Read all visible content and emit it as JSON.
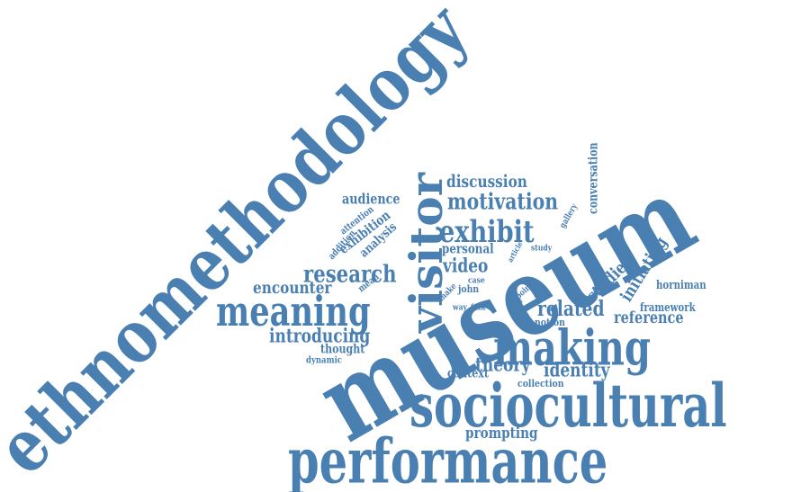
{
  "color": "#4a7fb2",
  "words": [
    {
      "text": "ethnomethodology",
      "orientation": "diagonal-up"
    },
    {
      "text": "museum",
      "orientation": "diagonal-up"
    },
    {
      "text": "visitor",
      "orientation": "vertical-up"
    },
    {
      "text": "sociocultural",
      "orientation": "horizontal"
    },
    {
      "text": "performance",
      "orientation": "horizontal"
    },
    {
      "text": "making",
      "orientation": "horizontal"
    },
    {
      "text": "meaning",
      "orientation": "horizontal"
    },
    {
      "text": "exhibit",
      "orientation": "horizontal"
    },
    {
      "text": "motivation",
      "orientation": "horizontal"
    },
    {
      "text": "discussion",
      "orientation": "horizontal"
    },
    {
      "text": "research",
      "orientation": "horizontal"
    },
    {
      "text": "video",
      "orientation": "horizontal"
    },
    {
      "text": "personal",
      "orientation": "horizontal"
    },
    {
      "text": "related",
      "orientation": "horizontal"
    },
    {
      "text": "theory",
      "orientation": "horizontal"
    },
    {
      "text": "identity",
      "orientation": "horizontal"
    },
    {
      "text": "introducing",
      "orientation": "horizontal"
    },
    {
      "text": "encounter",
      "orientation": "horizontal"
    },
    {
      "text": "audience",
      "orientation": "horizontal"
    },
    {
      "text": "thought",
      "orientation": "horizontal"
    },
    {
      "text": "dynamic",
      "orientation": "horizontal"
    },
    {
      "text": "prompting",
      "orientation": "horizontal"
    },
    {
      "text": "context",
      "orientation": "horizontal"
    },
    {
      "text": "collection",
      "orientation": "horizontal"
    },
    {
      "text": "reference",
      "orientation": "horizontal"
    },
    {
      "text": "framework",
      "orientation": "horizontal"
    },
    {
      "text": "horniman",
      "orientation": "horizontal"
    },
    {
      "text": "notion",
      "orientation": "horizontal"
    },
    {
      "text": "studies",
      "orientation": "diagonal-up"
    },
    {
      "text": "initiating",
      "orientation": "diagonal-up"
    },
    {
      "text": "conversation",
      "orientation": "vertical-up"
    },
    {
      "text": "gallery",
      "orientation": "diagonal-up"
    },
    {
      "text": "study",
      "orientation": "horizontal"
    },
    {
      "text": "exhibition",
      "orientation": "diagonal-up"
    },
    {
      "text": "analysis",
      "orientation": "diagonal-up"
    },
    {
      "text": "attention",
      "orientation": "diagonal-up"
    },
    {
      "text": "addition",
      "orientation": "diagonal-up"
    },
    {
      "text": "mean",
      "orientation": "diagonal-up"
    },
    {
      "text": "john",
      "orientation": "horizontal"
    },
    {
      "text": "case",
      "orientation": "horizontal"
    },
    {
      "text": "make",
      "orientation": "diagonal-up"
    },
    {
      "text": "way",
      "orientation": "horizontal"
    },
    {
      "text": "falk",
      "orientation": "horizontal"
    },
    {
      "text": "visit",
      "orientation": "horizontal"
    },
    {
      "text": "point",
      "orientation": "diagonal-up"
    },
    {
      "text": "article",
      "orientation": "diagonal-up"
    }
  ]
}
